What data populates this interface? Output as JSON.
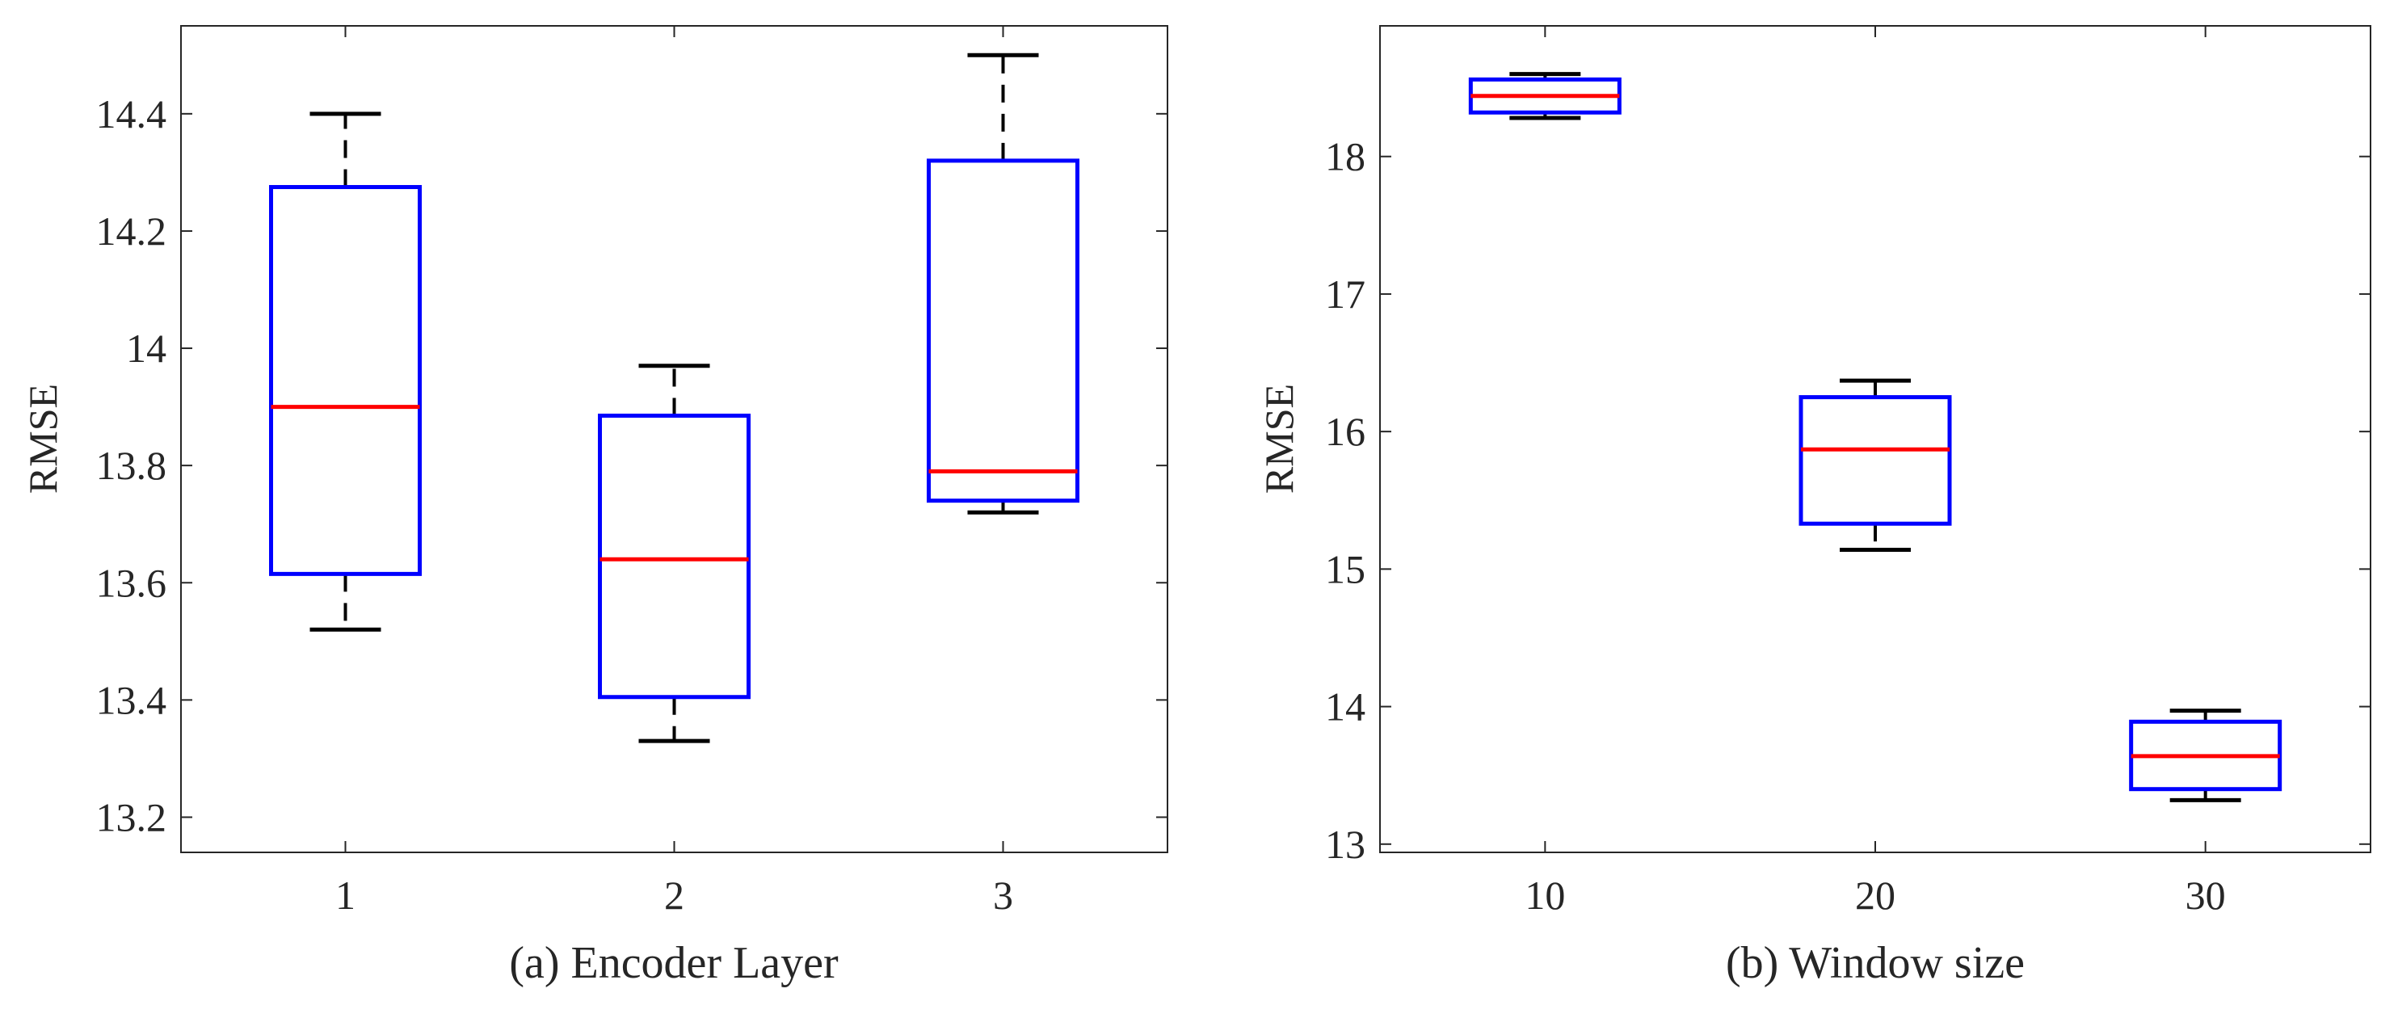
{
  "chart_data": [
    {
      "type": "box",
      "xlabel": "(a) Encoder Layer",
      "ylabel": "RMSE",
      "categories": [
        "1",
        "2",
        "3"
      ],
      "ylim": [
        13.14,
        14.55
      ],
      "yticks": [
        13.2,
        13.4,
        13.6,
        13.8,
        14,
        14.2,
        14.4
      ],
      "ytick_labels": [
        "13.2",
        "13.4",
        "13.6",
        "13.8",
        "14",
        "14.2",
        "14.4"
      ],
      "grid": false,
      "boxes": [
        {
          "category": "1",
          "whisker_low": 13.52,
          "q1": 13.615,
          "median": 13.9,
          "q3": 14.275,
          "whisker_high": 14.4
        },
        {
          "category": "2",
          "whisker_low": 13.33,
          "q1": 13.405,
          "median": 13.64,
          "q3": 13.885,
          "whisker_high": 13.97
        },
        {
          "category": "3",
          "whisker_low": 13.72,
          "q1": 13.74,
          "median": 13.79,
          "q3": 14.32,
          "whisker_high": 14.5
        }
      ],
      "colors": {
        "box": "#0000ff",
        "median": "#ff0000",
        "whisker": "#000000"
      }
    },
    {
      "type": "box",
      "xlabel": "(b) Window size",
      "ylabel": "RMSE",
      "categories": [
        "10",
        "20",
        "30"
      ],
      "ylim": [
        12.94,
        18.95
      ],
      "yticks": [
        13,
        14,
        15,
        16,
        17,
        18
      ],
      "ytick_labels": [
        "13",
        "14",
        "15",
        "16",
        "17",
        "18"
      ],
      "grid": false,
      "boxes": [
        {
          "category": "10",
          "whisker_low": 18.28,
          "q1": 18.32,
          "median": 18.44,
          "q3": 18.56,
          "whisker_high": 18.6
        },
        {
          "category": "20",
          "whisker_low": 15.14,
          "q1": 15.33,
          "median": 15.87,
          "q3": 16.25,
          "whisker_high": 16.37
        },
        {
          "category": "30",
          "whisker_low": 13.32,
          "q1": 13.4,
          "median": 13.64,
          "q3": 13.89,
          "whisker_high": 13.97
        }
      ],
      "colors": {
        "box": "#0000ff",
        "median": "#ff0000",
        "whisker": "#000000"
      }
    }
  ]
}
